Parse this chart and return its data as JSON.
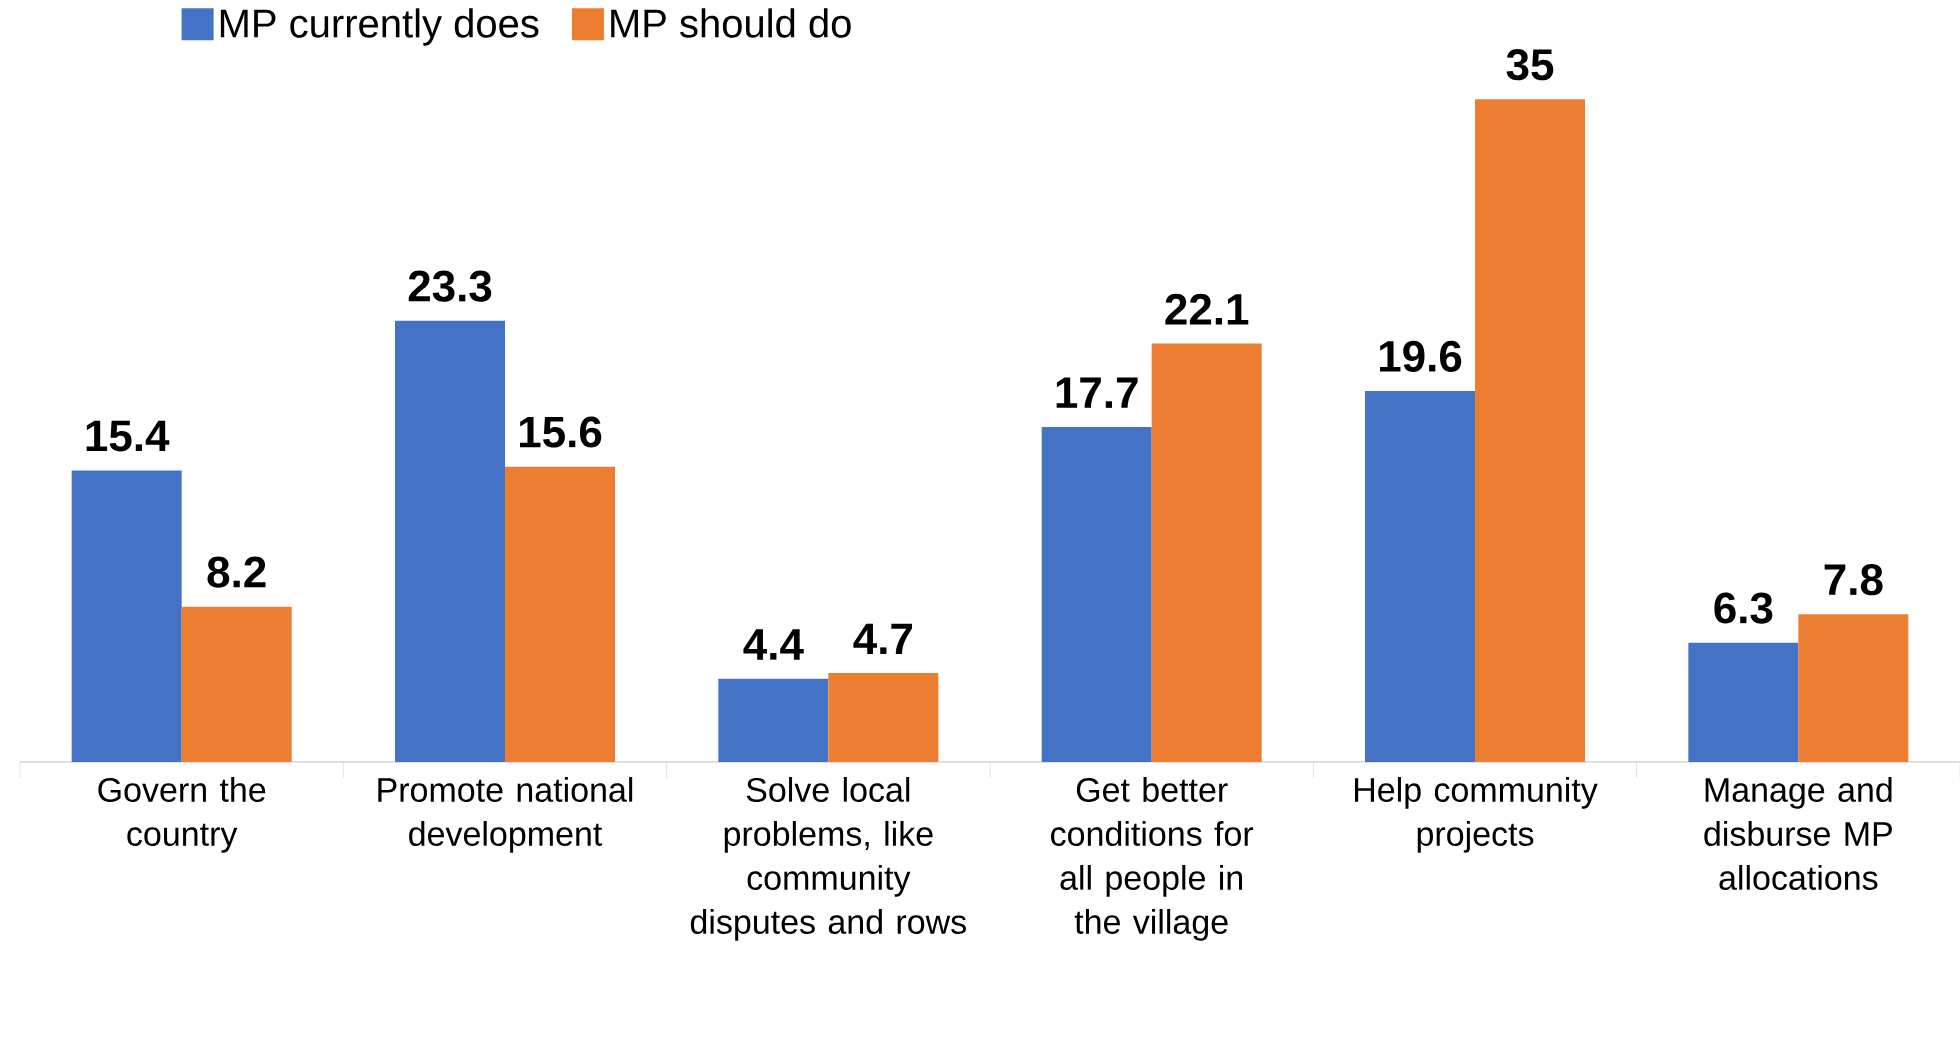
{
  "chart_data": {
    "type": "bar",
    "categories": [
      "Govern the country",
      "Promote national development",
      "Solve local problems, like community disputes and rows",
      "Get better conditions for all people in the village",
      "Help community projects",
      "Manage and disburse MP allocations"
    ],
    "series": [
      {
        "name": "MP currently does",
        "color": "#4472c4",
        "values": [
          15.4,
          23.3,
          4.4,
          17.7,
          19.6,
          6.3
        ]
      },
      {
        "name": "MP should do",
        "color": "#ed7d31",
        "values": [
          8.2,
          15.6,
          4.7,
          22.1,
          35,
          7.8
        ]
      }
    ],
    "data_labels": true,
    "legend": "top left",
    "grid": false
  }
}
